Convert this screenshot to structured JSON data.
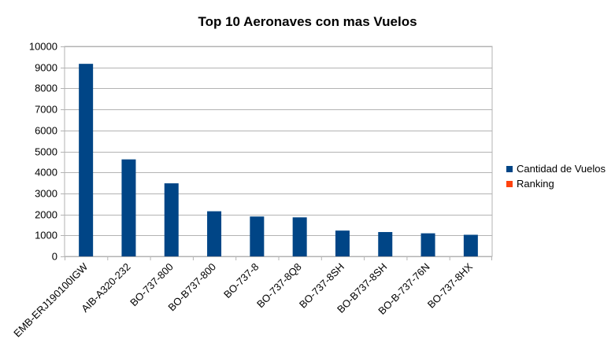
{
  "chart_data": {
    "type": "bar",
    "title": "Top 10 Aeronaves con mas Vuelos",
    "categories": [
      "EMB-ERJ190100IGW",
      "AIB-A320-232",
      "BO-737-800",
      "BO-B737-800",
      "BO-737-8",
      "BO-737-8Q8",
      "BO-737-8SH",
      "BO-B737-8SH",
      "BO-B-737-76N",
      "BO-737-8HX"
    ],
    "series": [
      {
        "name": "Cantidad de Vuelos",
        "color": "#004586",
        "values": [
          9170,
          4620,
          3480,
          2150,
          1900,
          1860,
          1230,
          1160,
          1100,
          1030
        ]
      },
      {
        "name": "Ranking",
        "color": "#ff420e",
        "values": [
          1,
          2,
          3,
          4,
          5,
          6,
          7,
          8,
          9,
          10
        ]
      }
    ],
    "ylim": [
      0,
      10000
    ],
    "yticks": [
      0,
      1000,
      2000,
      3000,
      4000,
      5000,
      6000,
      7000,
      8000,
      9000,
      10000
    ],
    "grid": true,
    "legend": "right"
  }
}
